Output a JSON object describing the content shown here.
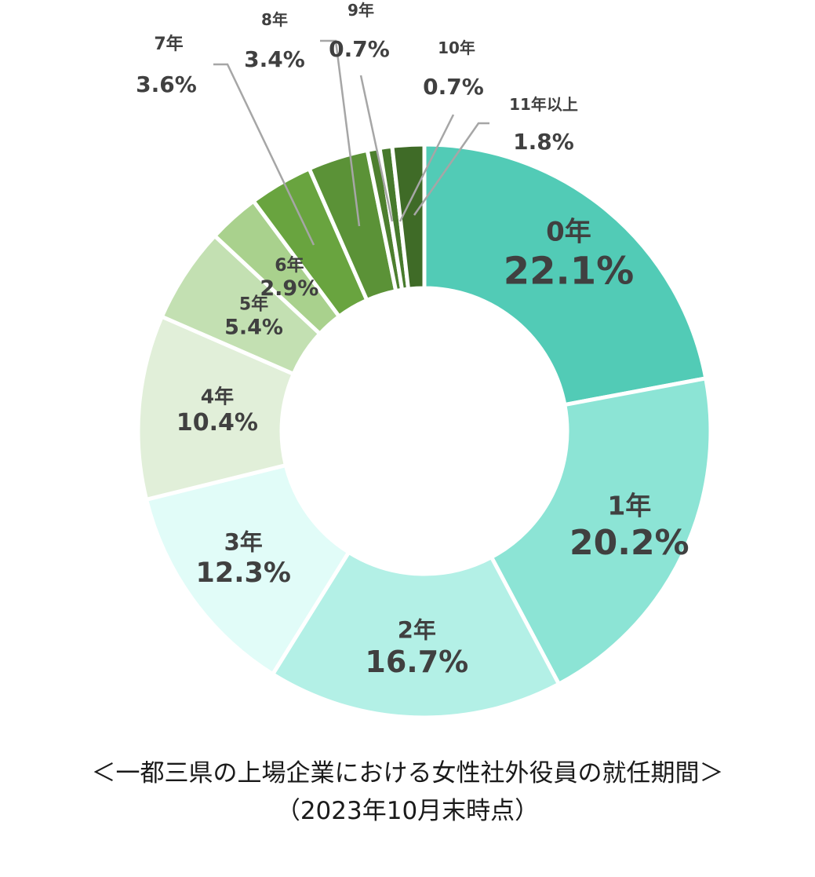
{
  "chart_data": {
    "type": "pie",
    "categories": [
      "0年",
      "1年",
      "2年",
      "3年",
      "4年",
      "5年",
      "6年",
      "7年",
      "8年",
      "9年",
      "10年",
      "11年以上"
    ],
    "values": [
      22.1,
      20.2,
      16.7,
      12.3,
      10.4,
      5.4,
      2.9,
      3.6,
      3.4,
      0.7,
      0.7,
      1.8
    ],
    "value_labels": [
      "22.1%",
      "20.2%",
      "16.7%",
      "12.3%",
      "10.4%",
      "5.4%",
      "2.9%",
      "3.6%",
      "3.4%",
      "0.7%",
      "0.7%",
      "1.8%"
    ],
    "colors": [
      "#52cbb6",
      "#8ce4d5",
      "#b3f0e6",
      "#e1fcf8",
      "#e1efd9",
      "#c3e0b2",
      "#a9d18d",
      "#69a43f",
      "#5b9237",
      "#4d7f2e",
      "#477a2c",
      "#3f6b27"
    ],
    "donut": true,
    "title": "＜一都三県の上場企業における女性社外役員の就任期間＞",
    "subtitle": "（2023年10月末時点）"
  }
}
